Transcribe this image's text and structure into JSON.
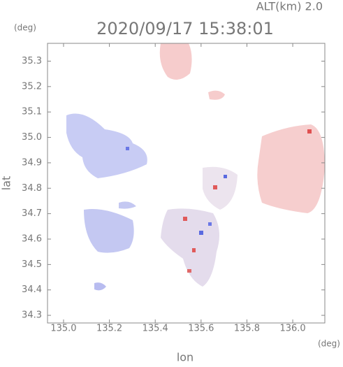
{
  "chart_data": {
    "type": "map",
    "title": "2020/09/17 15:38:01",
    "subtitle": "ALT(km) 2.0",
    "x_label": "lon",
    "y_label": "lat",
    "x_unit": "(deg)",
    "y_unit": "(deg)",
    "xlim": [
      134.93,
      136.14
    ],
    "ylim": [
      34.27,
      35.37
    ],
    "xticks": [
      {
        "value": 135.0,
        "label": "135.0"
      },
      135.2,
      135.4,
      135.6,
      135.8,
      {
        "value": 136.0,
        "label": "136.0"
      }
    ],
    "yticks": [
      34.3,
      34.4,
      34.5,
      34.6,
      34.7,
      34.8,
      34.9,
      {
        "value": 35.0,
        "label": "35.0"
      },
      35.1,
      35.2,
      35.3
    ]
  }
}
